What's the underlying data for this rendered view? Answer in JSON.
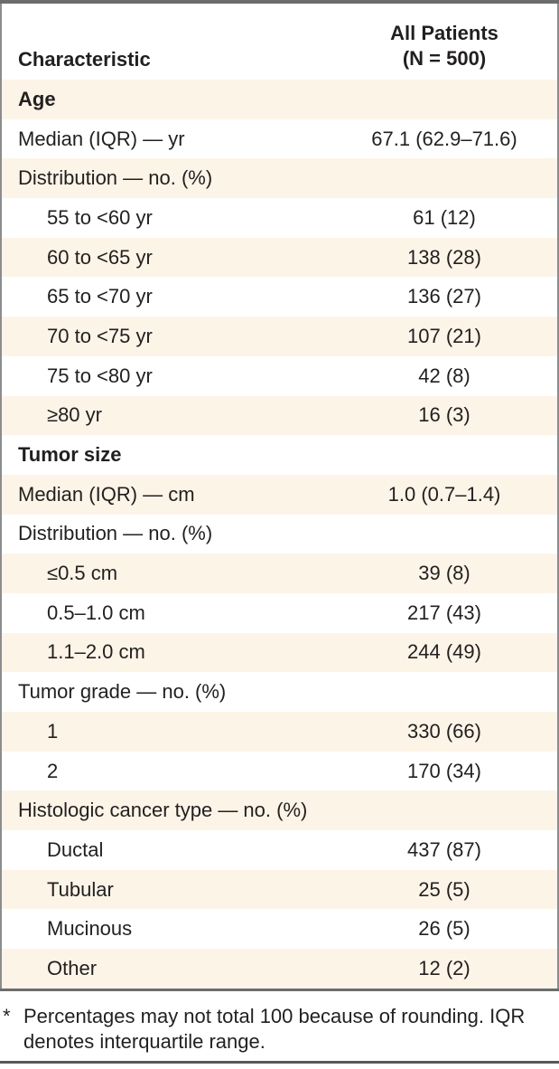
{
  "table": {
    "header": {
      "characteristic": "Characteristic",
      "all_patients_line1": "All Patients",
      "all_patients_line2": "(N = 500)"
    },
    "rows": [
      {
        "label": "Age",
        "value": "",
        "bold": true,
        "indent": false
      },
      {
        "label": "Median (IQR) — yr",
        "value": "67.1 (62.9–71.6)",
        "bold": false,
        "indent": false
      },
      {
        "label": "Distribution — no. (%)",
        "value": "",
        "bold": false,
        "indent": false
      },
      {
        "label": "55 to <60 yr",
        "value": "61 (12)",
        "bold": false,
        "indent": true
      },
      {
        "label": "60 to <65 yr",
        "value": "138 (28)",
        "bold": false,
        "indent": true
      },
      {
        "label": "65 to <70 yr",
        "value": "136 (27)",
        "bold": false,
        "indent": true
      },
      {
        "label": "70 to <75 yr",
        "value": "107 (21)",
        "bold": false,
        "indent": true
      },
      {
        "label": "75 to <80 yr",
        "value": "42 (8)",
        "bold": false,
        "indent": true
      },
      {
        "label": "≥80 yr",
        "value": "16 (3)",
        "bold": false,
        "indent": true
      },
      {
        "label": "Tumor size",
        "value": "",
        "bold": true,
        "indent": false
      },
      {
        "label": "Median (IQR) — cm",
        "value": "1.0 (0.7–1.4)",
        "bold": false,
        "indent": false
      },
      {
        "label": "Distribution — no. (%)",
        "value": "",
        "bold": false,
        "indent": false
      },
      {
        "label": "≤0.5 cm",
        "value": "39 (8)",
        "bold": false,
        "indent": true
      },
      {
        "label": "0.5–1.0 cm",
        "value": "217 (43)",
        "bold": false,
        "indent": true
      },
      {
        "label": "1.1–2.0 cm",
        "value": "244 (49)",
        "bold": false,
        "indent": true
      },
      {
        "label": "Tumor grade — no. (%)",
        "value": "",
        "bold": false,
        "indent": false
      },
      {
        "label": "1",
        "value": "330 (66)",
        "bold": false,
        "indent": true
      },
      {
        "label": "2",
        "value": "170 (34)",
        "bold": false,
        "indent": true
      },
      {
        "label": "Histologic cancer type — no. (%)",
        "value": "",
        "bold": false,
        "indent": false
      },
      {
        "label": "Ductal",
        "value": "437 (87)",
        "bold": false,
        "indent": true
      },
      {
        "label": "Tubular",
        "value": "25 (5)",
        "bold": false,
        "indent": true
      },
      {
        "label": "Mucinous",
        "value": "26 (5)",
        "bold": false,
        "indent": true
      },
      {
        "label": "Other",
        "value": "12 (2)",
        "bold": false,
        "indent": true
      }
    ],
    "footnote": {
      "marker": "*",
      "text": "Percentages may not total 100 because of rounding. IQR denotes interquartile range."
    },
    "colors": {
      "shaded_row": "#fdf4e8",
      "rule": "#6b6c6e",
      "side_border": "#8a8c8e",
      "text": "#221f1f"
    }
  }
}
